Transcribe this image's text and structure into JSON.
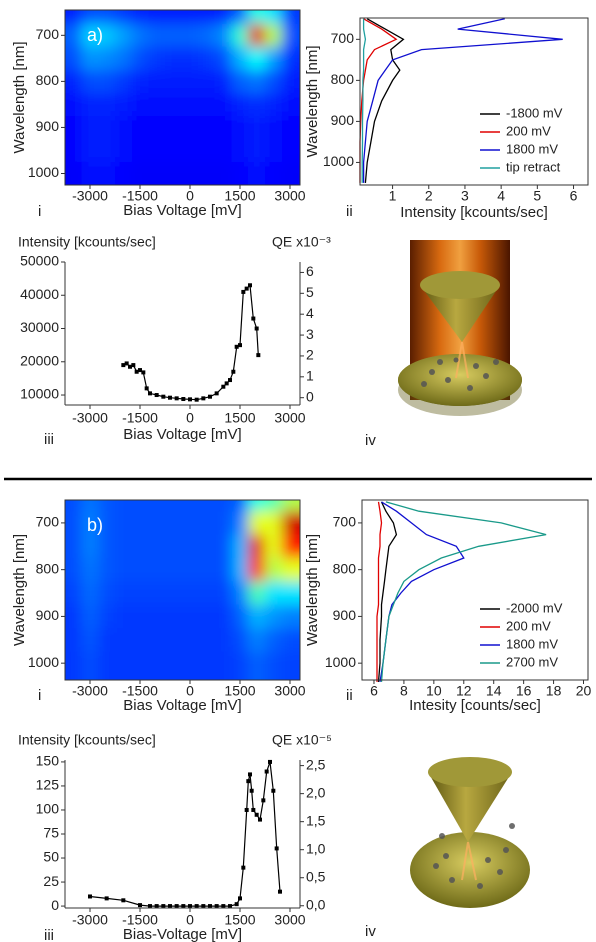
{
  "chart_data": [
    {
      "type": "heatmap",
      "annotation": "a)",
      "panel_label": "i",
      "xlabel": "Bias Voltage [mV]",
      "ylabel": "Wavelength [nm]",
      "xlim": [
        -3750,
        3300
      ],
      "ylim": [
        1025,
        645
      ],
      "xticks": [
        -3000,
        -1500,
        0,
        1500,
        3000
      ],
      "yticks": [
        700,
        800,
        900,
        1000
      ],
      "colormap": "jet",
      "x": [
        -3500,
        -3000,
        -2500,
        -2000,
        -1500,
        -1000,
        -500,
        0,
        500,
        1000,
        1500,
        2000,
        2500,
        3000
      ],
      "y": [
        650,
        700,
        750,
        800,
        850,
        900,
        950,
        1000
      ],
      "z": [
        [
          0.15,
          0.2,
          0.2,
          0.18,
          0.16,
          0.15,
          0.15,
          0.15,
          0.15,
          0.16,
          0.22,
          0.4,
          0.35,
          0.18
        ],
        [
          0.22,
          0.33,
          0.32,
          0.28,
          0.24,
          0.22,
          0.22,
          0.22,
          0.23,
          0.26,
          0.42,
          0.9,
          0.55,
          0.2
        ],
        [
          0.2,
          0.27,
          0.26,
          0.24,
          0.2,
          0.18,
          0.17,
          0.17,
          0.18,
          0.2,
          0.3,
          0.38,
          0.28,
          0.17
        ],
        [
          0.16,
          0.2,
          0.2,
          0.18,
          0.16,
          0.15,
          0.15,
          0.15,
          0.15,
          0.16,
          0.22,
          0.24,
          0.2,
          0.15
        ],
        [
          0.14,
          0.16,
          0.16,
          0.15,
          0.14,
          0.14,
          0.14,
          0.14,
          0.14,
          0.14,
          0.16,
          0.17,
          0.16,
          0.14
        ],
        [
          0.13,
          0.15,
          0.15,
          0.14,
          0.13,
          0.13,
          0.13,
          0.13,
          0.13,
          0.13,
          0.14,
          0.15,
          0.14,
          0.13
        ],
        [
          0.13,
          0.15,
          0.15,
          0.14,
          0.13,
          0.13,
          0.13,
          0.13,
          0.13,
          0.13,
          0.14,
          0.15,
          0.14,
          0.13
        ],
        [
          0.12,
          0.14,
          0.14,
          0.13,
          0.12,
          0.12,
          0.12,
          0.12,
          0.12,
          0.12,
          0.13,
          0.14,
          0.13,
          0.12
        ]
      ]
    },
    {
      "type": "spectra",
      "panel_label": "ii",
      "xlabel": "Intensity [kcounts/sec]",
      "ylabel": "Wavelength [nm]",
      "xlim": [
        0.1,
        6.4
      ],
      "ylim": [
        1055,
        648
      ],
      "xticks": [
        1,
        2,
        3,
        4,
        5,
        6
      ],
      "yticks": [
        700,
        800,
        900,
        1000
      ],
      "legend": "lower right",
      "y": [
        650,
        675,
        700,
        725,
        750,
        775,
        800,
        850,
        900,
        950,
        1000,
        1050
      ],
      "series": [
        {
          "name": "-1800 mV",
          "color": "#000000",
          "values": [
            0.3,
            0.8,
            1.3,
            0.95,
            1.0,
            1.2,
            1.0,
            0.7,
            0.5,
            0.4,
            0.3,
            0.25
          ]
        },
        {
          "name": "200 mV",
          "color": "#e00000",
          "values": [
            0.2,
            0.7,
            1.1,
            0.5,
            0.3,
            0.25,
            0.2,
            0.15,
            0.12,
            0.1,
            0.1,
            0.1
          ]
        },
        {
          "name": "1800 mV",
          "color": "#1010d0",
          "values": [
            4.1,
            2.8,
            5.7,
            1.8,
            1.0,
            0.8,
            0.6,
            0.45,
            0.3,
            0.25,
            0.2,
            0.2
          ]
        },
        {
          "name": "tip retract",
          "color": "#20a0a0",
          "values": [
            0.2,
            0.2,
            0.25,
            0.2,
            0.2,
            0.2,
            0.18,
            0.18,
            0.17,
            0.17,
            0.16,
            0.16
          ]
        }
      ]
    },
    {
      "type": "line",
      "panel_label": "iii",
      "ylabel": "Intensity  [kcounts/sec]",
      "y2label": "QE x10⁻³",
      "xlabel": "Bias Voltage [mV]",
      "xlim": [
        -3750,
        3300
      ],
      "ylim": [
        7000,
        50000
      ],
      "y2lim": [
        -0.35,
        6.5
      ],
      "xticks": [
        -3000,
        -1500,
        0,
        1500,
        3000
      ],
      "yticks": [
        10000,
        20000,
        30000,
        40000,
        50000
      ],
      "y2ticks": [
        0,
        1,
        2,
        3,
        4,
        5,
        6
      ],
      "color": "#000000",
      "x": [
        -2000,
        -1900,
        -1800,
        -1700,
        -1600,
        -1500,
        -1400,
        -1300,
        -1200,
        -1000,
        -800,
        -600,
        -400,
        -200,
        0,
        200,
        400,
        600,
        800,
        1000,
        1100,
        1200,
        1300,
        1400,
        1500,
        1600,
        1700,
        1800,
        1900,
        2000,
        2050
      ],
      "values": [
        19000,
        19500,
        18500,
        19000,
        17000,
        17500,
        16800,
        12000,
        10500,
        10000,
        9500,
        9200,
        9000,
        8800,
        8700,
        8600,
        9000,
        9500,
        10500,
        12500,
        13500,
        14500,
        17000,
        24500,
        25000,
        41000,
        42000,
        43000,
        33000,
        30000,
        22000
      ]
    },
    {
      "type": "heatmap",
      "annotation": "b)",
      "panel_label": "i",
      "xlabel": "Bias Voltage [mV]",
      "ylabel": "Wavelength [nm]",
      "xlim": [
        -3750,
        3300
      ],
      "ylim": [
        1036,
        651
      ],
      "xticks": [
        -3000,
        -1500,
        0,
        1500,
        3000
      ],
      "yticks": [
        700,
        800,
        900,
        1000
      ],
      "colormap": "jet",
      "x": [
        -3500,
        -3000,
        -2500,
        -2000,
        -1500,
        -1000,
        -500,
        0,
        500,
        1000,
        1500,
        2000,
        2500,
        3000
      ],
      "y": [
        650,
        700,
        750,
        800,
        850,
        900,
        950,
        1000
      ],
      "z": [
        [
          0.2,
          0.24,
          0.21,
          0.2,
          0.2,
          0.2,
          0.2,
          0.2,
          0.2,
          0.2,
          0.22,
          0.4,
          0.45,
          0.55
        ],
        [
          0.2,
          0.25,
          0.21,
          0.2,
          0.2,
          0.2,
          0.2,
          0.2,
          0.2,
          0.2,
          0.25,
          0.6,
          0.6,
          0.92
        ],
        [
          0.2,
          0.25,
          0.21,
          0.2,
          0.2,
          0.2,
          0.2,
          0.2,
          0.2,
          0.2,
          0.3,
          0.9,
          0.6,
          0.85
        ],
        [
          0.2,
          0.24,
          0.21,
          0.2,
          0.2,
          0.2,
          0.2,
          0.2,
          0.2,
          0.2,
          0.3,
          0.85,
          0.55,
          0.6
        ],
        [
          0.19,
          0.23,
          0.2,
          0.19,
          0.19,
          0.19,
          0.19,
          0.19,
          0.19,
          0.19,
          0.25,
          0.45,
          0.35,
          0.35
        ],
        [
          0.18,
          0.22,
          0.19,
          0.18,
          0.18,
          0.18,
          0.18,
          0.18,
          0.18,
          0.18,
          0.22,
          0.3,
          0.27,
          0.25
        ],
        [
          0.18,
          0.21,
          0.18,
          0.18,
          0.18,
          0.18,
          0.18,
          0.18,
          0.18,
          0.18,
          0.2,
          0.25,
          0.22,
          0.2
        ],
        [
          0.18,
          0.2,
          0.18,
          0.18,
          0.18,
          0.18,
          0.18,
          0.18,
          0.18,
          0.18,
          0.19,
          0.22,
          0.2,
          0.19
        ]
      ]
    },
    {
      "type": "spectra",
      "panel_label": "ii",
      "xlabel": "Intesity [counts/sec]",
      "ylabel": "Wavelength [nm]",
      "xlim": [
        5.2,
        20.3
      ],
      "ylim": [
        1036,
        651
      ],
      "xticks": [
        6,
        8,
        10,
        12,
        14,
        16,
        18,
        20
      ],
      "yticks": [
        700,
        800,
        900,
        1000
      ],
      "legend": "lower right",
      "y": [
        655,
        675,
        700,
        725,
        750,
        775,
        800,
        825,
        850,
        875,
        900,
        950,
        1000,
        1040
      ],
      "series": [
        {
          "name": "-2000 mV",
          "color": "#000000",
          "values": [
            6.5,
            6.8,
            7.3,
            7.5,
            7.0,
            6.9,
            6.8,
            6.7,
            6.6,
            6.5,
            6.5,
            6.4,
            6.4,
            6.3
          ]
        },
        {
          "name": "200 mV",
          "color": "#e00000",
          "values": [
            6.3,
            6.4,
            6.5,
            6.4,
            6.4,
            6.3,
            6.3,
            6.3,
            6.3,
            6.3,
            6.2,
            6.2,
            6.2,
            6.2
          ]
        },
        {
          "name": "1800 mV",
          "color": "#1010d0",
          "values": [
            6.5,
            7.5,
            8.5,
            9.5,
            11.5,
            12.0,
            10.0,
            8.5,
            7.8,
            7.2,
            7.0,
            6.8,
            6.6,
            6.4
          ]
        },
        {
          "name": "2700 mV",
          "color": "#1a9a8a",
          "values": [
            6.8,
            9.0,
            14.5,
            17.5,
            13.0,
            10.5,
            9.0,
            8.0,
            7.6,
            7.3,
            7.0,
            6.8,
            6.6,
            6.5
          ]
        }
      ]
    },
    {
      "type": "line",
      "panel_label": "iii",
      "ylabel": "Intensity  [kcounts/sec]",
      "y2label": "QE x10⁻⁵",
      "xlabel": "Bias-Voltage [mV]",
      "xlim": [
        -3750,
        3300
      ],
      "ylim": [
        -2,
        152
      ],
      "y2lim": [
        -0.04,
        2.6
      ],
      "xticks": [
        -3000,
        -1500,
        0,
        1500,
        3000
      ],
      "yticks": [
        0,
        25,
        50,
        75,
        100,
        125,
        150
      ],
      "y2ticks": [
        {
          "value": 0,
          "label": "0,0"
        },
        {
          "value": 0.5,
          "label": "0,5"
        },
        {
          "value": 1,
          "label": "1,0"
        },
        {
          "value": 1.5,
          "label": "1,5"
        },
        {
          "value": 2,
          "label": "2,0"
        },
        {
          "value": 2.5,
          "label": "2,5"
        }
      ],
      "color": "#000000",
      "x": [
        -3000,
        -2500,
        -2000,
        -1500,
        -1200,
        -1000,
        -800,
        -600,
        -400,
        -200,
        0,
        200,
        400,
        600,
        800,
        1000,
        1200,
        1400,
        1500,
        1600,
        1700,
        1750,
        1800,
        1850,
        1900,
        2000,
        2100,
        2200,
        2300,
        2400,
        2500,
        2600,
        2700
      ],
      "values": [
        10,
        8,
        6,
        1,
        0,
        0,
        0,
        0,
        0,
        0,
        0,
        0,
        0,
        0,
        0,
        0,
        0,
        2,
        8,
        40,
        100,
        130,
        137,
        120,
        100,
        95,
        90,
        110,
        140,
        150,
        120,
        60,
        15
      ]
    }
  ],
  "illustrations": [
    {
      "panel_label": "iv"
    },
    {
      "panel_label": "iv"
    }
  ]
}
